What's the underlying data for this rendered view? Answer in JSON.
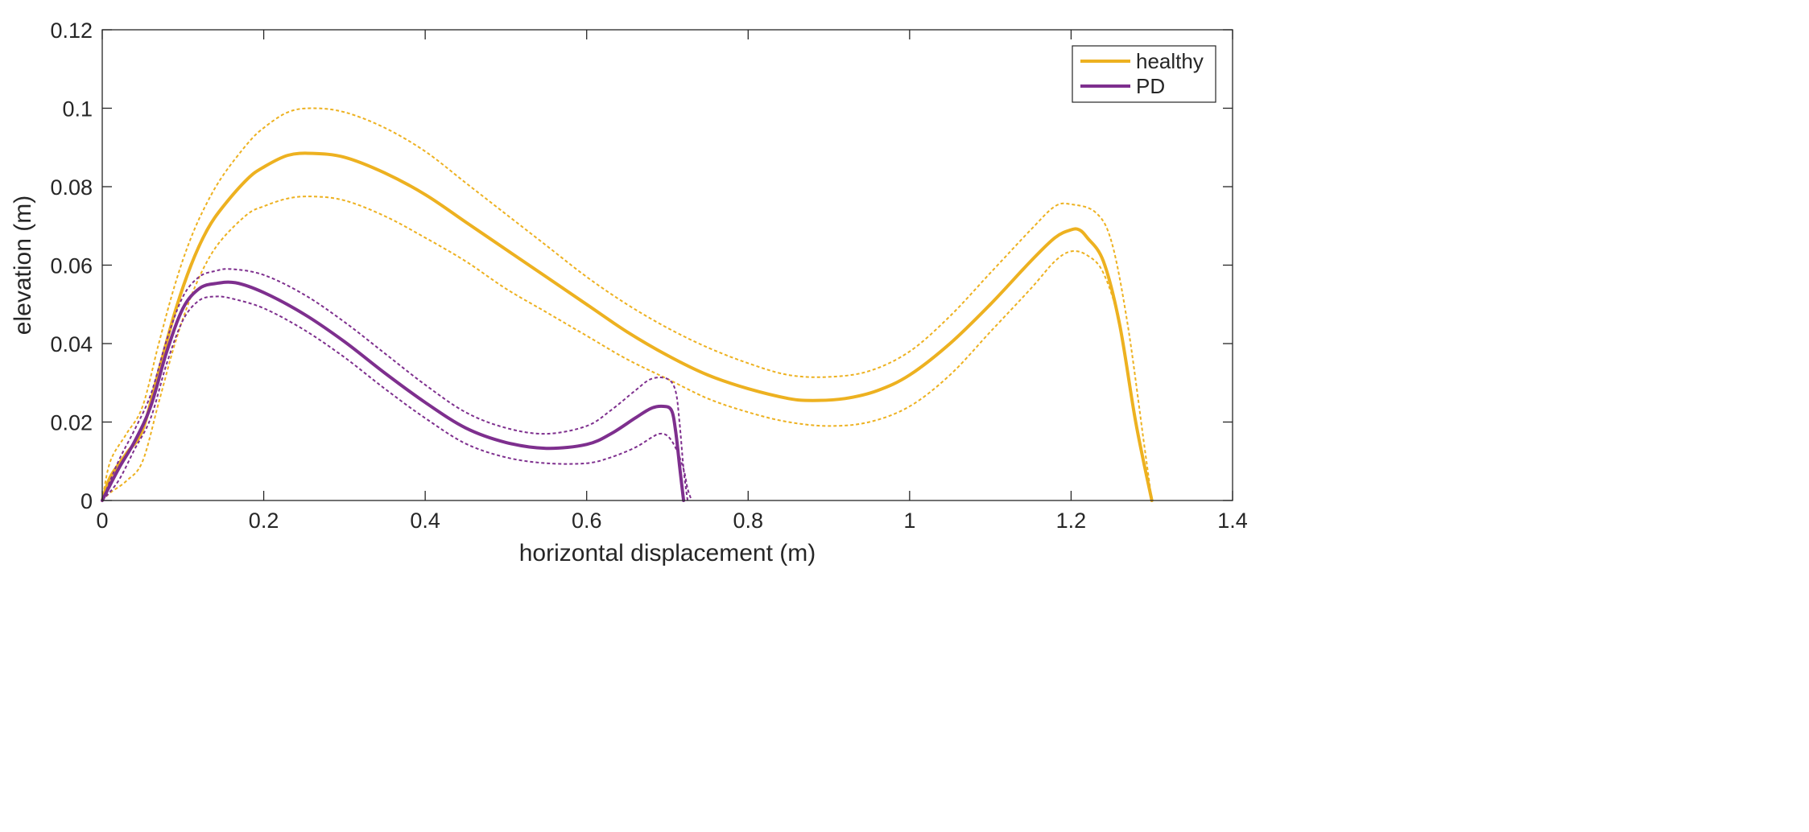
{
  "chart_data": {
    "type": "line",
    "title": "",
    "xlabel": "horizontal displacement (m)",
    "ylabel": "elevation (m)",
    "xlim": [
      0,
      1.4
    ],
    "ylim": [
      0,
      0.12
    ],
    "grid": false,
    "legend_position": "top-right",
    "x_ticks": [
      0,
      0.2,
      0.4,
      0.6,
      0.8,
      1.0,
      1.2,
      1.4
    ],
    "x_tick_labels": [
      "0",
      "0.2",
      "0.4",
      "0.6",
      "0.8",
      "1",
      "1.2",
      "1.4"
    ],
    "y_ticks": [
      0,
      0.02,
      0.04,
      0.06,
      0.08,
      0.1,
      0.12
    ],
    "y_tick_labels": [
      "0",
      "0.02",
      "0.04",
      "0.06",
      "0.08",
      "0.1",
      "0.12"
    ],
    "legend": [
      {
        "label": "healthy",
        "series": "healthy"
      },
      {
        "label": "PD",
        "series": "pd"
      }
    ],
    "series": [
      {
        "id": "healthy-upper",
        "name": "healthy (upper bound)",
        "color": "#EDB120",
        "style": "dotted",
        "x": [
          0,
          0.01,
          0.03,
          0.05,
          0.07,
          0.09,
          0.11,
          0.13,
          0.15,
          0.18,
          0.2,
          0.23,
          0.26,
          0.3,
          0.35,
          0.4,
          0.45,
          0.5,
          0.55,
          0.6,
          0.65,
          0.7,
          0.75,
          0.8,
          0.85,
          0.9,
          0.95,
          1.0,
          1.05,
          1.1,
          1.15,
          1.18,
          1.2,
          1.23,
          1.25,
          1.27,
          1.29,
          1.3
        ],
        "y": [
          0,
          0.01,
          0.017,
          0.024,
          0.04,
          0.055,
          0.067,
          0.076,
          0.083,
          0.091,
          0.095,
          0.099,
          0.1,
          0.099,
          0.095,
          0.089,
          0.081,
          0.073,
          0.065,
          0.057,
          0.05,
          0.044,
          0.039,
          0.035,
          0.032,
          0.0315,
          0.033,
          0.038,
          0.047,
          0.058,
          0.069,
          0.075,
          0.0755,
          0.0735,
          0.066,
          0.045,
          0.015,
          0
        ]
      },
      {
        "id": "healthy-lower",
        "name": "healthy (lower bound)",
        "color": "#EDB120",
        "style": "dotted",
        "x": [
          0,
          0.01,
          0.03,
          0.05,
          0.07,
          0.09,
          0.11,
          0.13,
          0.15,
          0.18,
          0.2,
          0.23,
          0.26,
          0.3,
          0.35,
          0.4,
          0.45,
          0.5,
          0.55,
          0.6,
          0.65,
          0.7,
          0.75,
          0.8,
          0.85,
          0.9,
          0.95,
          1.0,
          1.05,
          1.1,
          1.15,
          1.18,
          1.2,
          1.22,
          1.24,
          1.26,
          1.28,
          1.3
        ],
        "y": [
          0,
          0.002,
          0.005,
          0.01,
          0.025,
          0.04,
          0.052,
          0.061,
          0.067,
          0.073,
          0.075,
          0.077,
          0.0775,
          0.0765,
          0.0725,
          0.067,
          0.061,
          0.054,
          0.048,
          0.042,
          0.036,
          0.031,
          0.026,
          0.0225,
          0.02,
          0.019,
          0.02,
          0.024,
          0.032,
          0.043,
          0.054,
          0.061,
          0.0635,
          0.0625,
          0.058,
          0.045,
          0.02,
          0
        ]
      },
      {
        "id": "healthy",
        "name": "healthy",
        "color": "#EDB120",
        "style": "solid",
        "x": [
          0,
          0.01,
          0.03,
          0.05,
          0.07,
          0.09,
          0.11,
          0.13,
          0.15,
          0.18,
          0.2,
          0.23,
          0.26,
          0.3,
          0.35,
          0.4,
          0.45,
          0.5,
          0.55,
          0.6,
          0.65,
          0.7,
          0.75,
          0.8,
          0.85,
          0.88,
          0.92,
          0.96,
          1.0,
          1.05,
          1.1,
          1.15,
          1.18,
          1.2,
          1.21,
          1.22,
          1.24,
          1.26,
          1.28,
          1.3
        ],
        "y": [
          0,
          0.006,
          0.012,
          0.018,
          0.033,
          0.048,
          0.06,
          0.069,
          0.075,
          0.082,
          0.085,
          0.088,
          0.0885,
          0.0875,
          0.0835,
          0.078,
          0.071,
          0.064,
          0.057,
          0.05,
          0.043,
          0.037,
          0.032,
          0.0285,
          0.026,
          0.0255,
          0.026,
          0.028,
          0.032,
          0.04,
          0.05,
          0.061,
          0.067,
          0.069,
          0.069,
          0.067,
          0.061,
          0.045,
          0.02,
          0
        ]
      },
      {
        "id": "pd-upper",
        "name": "PD (upper bound)",
        "color": "#7E2F8E",
        "style": "dotted",
        "x": [
          0,
          0.02,
          0.04,
          0.06,
          0.08,
          0.1,
          0.12,
          0.14,
          0.16,
          0.2,
          0.25,
          0.3,
          0.35,
          0.4,
          0.45,
          0.5,
          0.55,
          0.6,
          0.63,
          0.66,
          0.68,
          0.7,
          0.71,
          0.715,
          0.72,
          0.725
        ],
        "y": [
          0,
          0.01,
          0.018,
          0.027,
          0.041,
          0.052,
          0.057,
          0.0585,
          0.059,
          0.0575,
          0.0525,
          0.0455,
          0.0375,
          0.0295,
          0.0225,
          0.0185,
          0.017,
          0.019,
          0.023,
          0.028,
          0.031,
          0.031,
          0.028,
          0.02,
          0.008,
          0
        ]
      },
      {
        "id": "pd-lower",
        "name": "PD (lower bound)",
        "color": "#7E2F8E",
        "style": "dotted",
        "x": [
          0,
          0.02,
          0.04,
          0.06,
          0.08,
          0.1,
          0.12,
          0.14,
          0.16,
          0.2,
          0.25,
          0.3,
          0.35,
          0.4,
          0.45,
          0.5,
          0.55,
          0.6,
          0.63,
          0.66,
          0.68,
          0.69,
          0.7,
          0.71,
          0.72,
          0.725,
          0.73
        ],
        "y": [
          0,
          0.005,
          0.013,
          0.021,
          0.035,
          0.046,
          0.051,
          0.052,
          0.0515,
          0.049,
          0.0435,
          0.0365,
          0.0285,
          0.021,
          0.0145,
          0.011,
          0.0095,
          0.0095,
          0.011,
          0.0135,
          0.016,
          0.017,
          0.0165,
          0.0135,
          0.008,
          0.003,
          0
        ]
      },
      {
        "id": "pd",
        "name": "PD",
        "color": "#7E2F8E",
        "style": "solid",
        "x": [
          0,
          0.02,
          0.04,
          0.06,
          0.08,
          0.1,
          0.12,
          0.14,
          0.165,
          0.2,
          0.25,
          0.3,
          0.35,
          0.4,
          0.45,
          0.5,
          0.55,
          0.6,
          0.63,
          0.66,
          0.68,
          0.695,
          0.705,
          0.71,
          0.715,
          0.72
        ],
        "y": [
          0,
          0.008,
          0.015,
          0.024,
          0.038,
          0.049,
          0.054,
          0.0553,
          0.0555,
          0.053,
          0.0475,
          0.0405,
          0.0325,
          0.025,
          0.0185,
          0.0148,
          0.0133,
          0.0143,
          0.017,
          0.021,
          0.0235,
          0.024,
          0.023,
          0.018,
          0.009,
          0
        ]
      }
    ]
  }
}
